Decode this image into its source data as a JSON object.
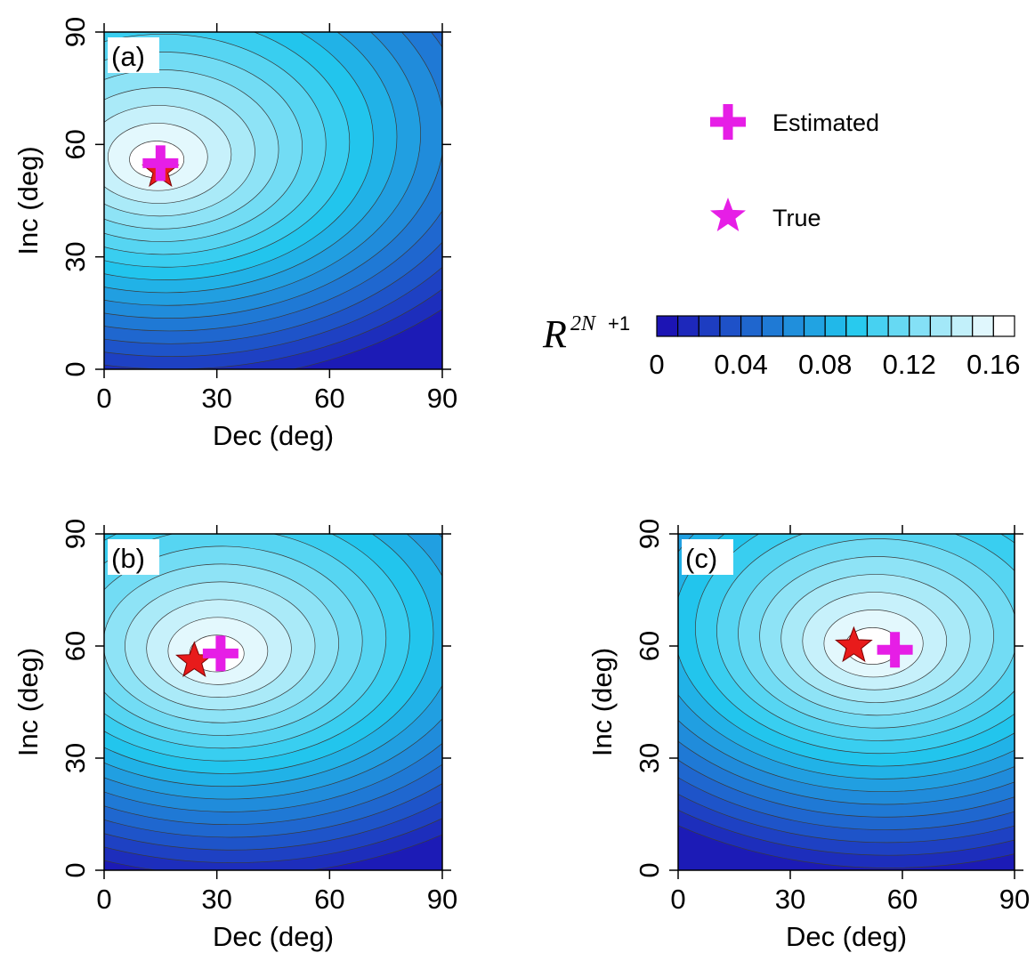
{
  "chart_data": [
    {
      "type": "contour",
      "panel_label": "(a)",
      "xlabel": "Dec (deg)",
      "ylabel": "Inc (deg)",
      "xlim": [
        0,
        90
      ],
      "ylim": [
        0,
        90
      ],
      "xticks": [
        "0",
        "30",
        "60",
        "90"
      ],
      "yticks": [
        "0",
        "30",
        "60",
        "90"
      ],
      "true_point": {
        "dec": 15,
        "inc": 53
      },
      "estimated_point": {
        "dec": 15,
        "inc": 55
      },
      "peak": {
        "dec": 14,
        "inc": 56
      },
      "true_color": "#e81b1b"
    },
    {
      "type": "contour",
      "panel_label": "(b)",
      "xlabel": "Dec (deg)",
      "ylabel": "Inc (deg)",
      "xlim": [
        0,
        90
      ],
      "ylim": [
        0,
        90
      ],
      "xticks": [
        "0",
        "30",
        "60",
        "90"
      ],
      "yticks": [
        "0",
        "30",
        "60",
        "90"
      ],
      "true_point": {
        "dec": 24,
        "inc": 56
      },
      "estimated_point": {
        "dec": 31,
        "inc": 58
      },
      "peak": {
        "dec": 30,
        "inc": 58
      },
      "true_color": "#e81b1b"
    },
    {
      "type": "contour",
      "panel_label": "(c)",
      "xlabel": "Dec (deg)",
      "ylabel": "Inc (deg)",
      "xlim": [
        0,
        90
      ],
      "ylim": [
        0,
        90
      ],
      "xticks": [
        "0",
        "30",
        "60",
        "90"
      ],
      "yticks": [
        "0",
        "30",
        "60",
        "90"
      ],
      "true_point": {
        "dec": 47,
        "inc": 60
      },
      "estimated_point": {
        "dec": 58,
        "inc": 59
      },
      "peak": {
        "dec": 52,
        "inc": 60
      },
      "true_color": "#e81b1b"
    }
  ],
  "legend": {
    "estimated_label": "Estimated",
    "true_label": "True",
    "marker_color": "#e61ee6"
  },
  "colorbar": {
    "title_main": "R",
    "title_sup_italic": "2N",
    "title_sup_plain": "+1",
    "ticks": [
      "0",
      "0.04",
      "0.08",
      "0.12",
      "0.16"
    ],
    "range": [
      0,
      0.17
    ],
    "levels": 17,
    "color_low": "#1c14b4",
    "color_mid": "#22c8ee",
    "color_high": "#ffffff"
  }
}
